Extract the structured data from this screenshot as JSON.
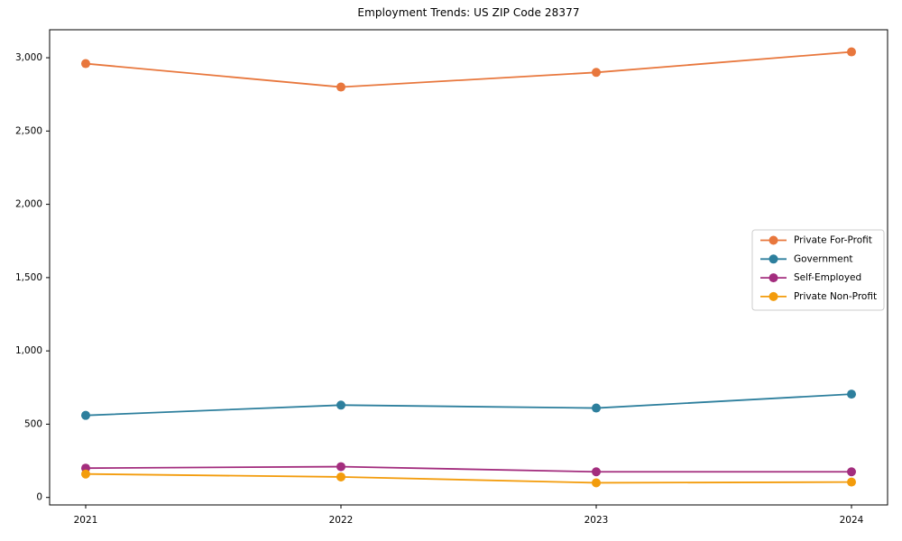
{
  "figure": {
    "background": "#ffffff"
  },
  "chart_data": {
    "type": "line",
    "title": "Employment Trends: US ZIP Code 28377",
    "categories": [
      "2021",
      "2022",
      "2023",
      "2024"
    ],
    "series": [
      {
        "name": "Private For-Profit",
        "color": "#e8773d",
        "values": [
          2960,
          2800,
          2900,
          3040
        ]
      },
      {
        "name": "Government",
        "color": "#2d7f9d",
        "values": [
          560,
          630,
          610,
          705
        ]
      },
      {
        "name": "Self-Employed",
        "color": "#a32d7e",
        "values": [
          200,
          210,
          175,
          175
        ]
      },
      {
        "name": "Private Non-Profit",
        "color": "#f39c0c",
        "values": [
          160,
          140,
          100,
          105
        ]
      }
    ],
    "xlabel": "",
    "ylabel": "",
    "ylim": [
      -51,
      3191
    ],
    "yticks": [
      0,
      500,
      1000,
      1500,
      2000,
      2500,
      3000
    ],
    "grid": false,
    "legend_position": "center-right",
    "axis_color": "#000000",
    "tick_label_color": "#000000",
    "legend_border_color": "#cccccc",
    "legend_background": "#ffffff",
    "marker": "circle"
  }
}
